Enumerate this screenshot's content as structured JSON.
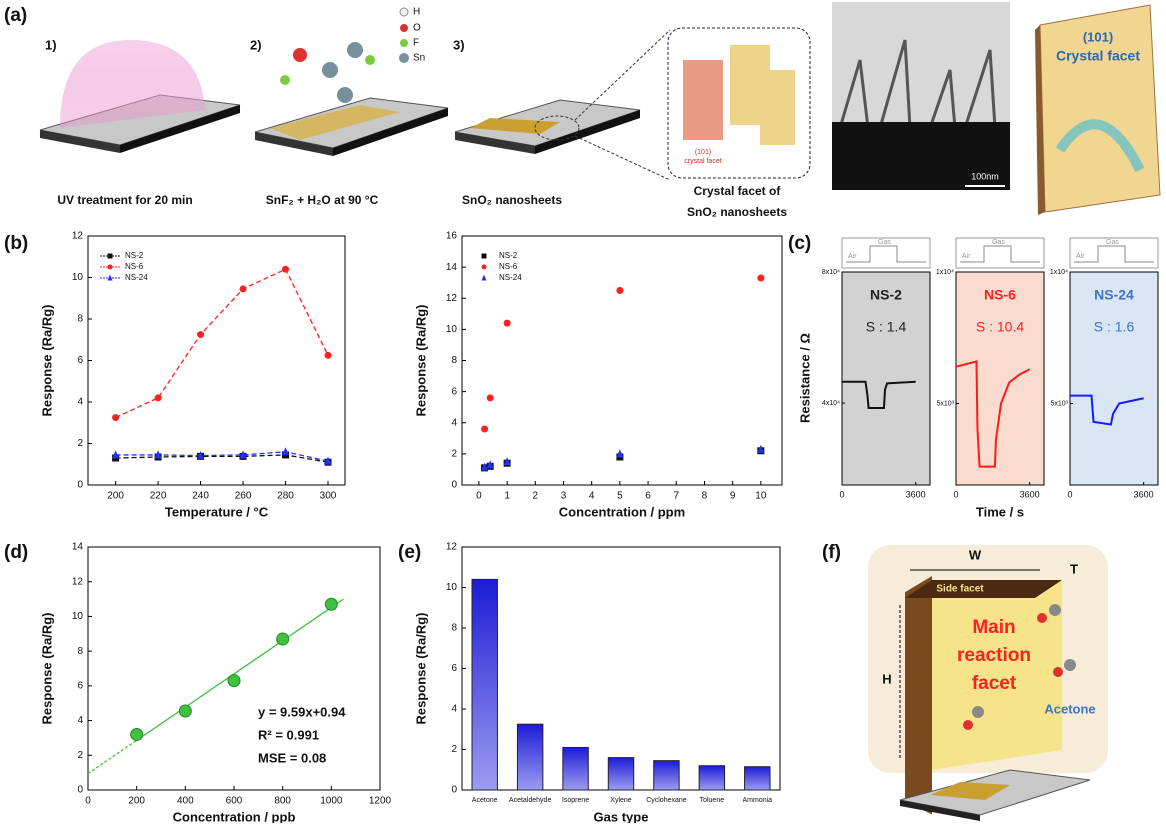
{
  "figure": {
    "panel_labels": [
      "(a)",
      "(b)",
      "(c)",
      "(d)",
      "(e)",
      "(f)"
    ],
    "a": {
      "steps": [
        "1)",
        "2)",
        "3)"
      ],
      "captions": [
        "UV treatment for 20 min",
        "SnF₂ + H₂O at 90 °C",
        "SnO₂ nanosheets"
      ],
      "facet_caption": [
        "Crystal facet of",
        "SnO₂ nanosheets"
      ],
      "facet_label": [
        "(101)",
        "crystal facet"
      ],
      "atoms": [
        "H",
        "O",
        "F",
        "Sn"
      ],
      "scale_bar": "100nm",
      "crystal_facet": [
        "(101)",
        "Crystal facet"
      ]
    },
    "f": {
      "width": "W",
      "thickness": "T",
      "height": "H",
      "side": "Side facet",
      "main": [
        "Main",
        "reaction",
        "facet"
      ],
      "molecule": "Acetone"
    }
  },
  "chart_data": [
    {
      "type": "line",
      "xlabel": "Temperature / °C",
      "ylabel": "Response (Ra/Rg)",
      "legend": "upper left",
      "x": [
        200,
        220,
        240,
        260,
        280,
        300
      ],
      "xlim": [
        187,
        308
      ],
      "xticks": [
        200,
        220,
        240,
        260,
        280,
        300
      ],
      "ylim": [
        0,
        12
      ],
      "yticks": [
        0,
        2,
        4,
        6,
        8,
        10,
        12
      ],
      "series": [
        {
          "name": "NS-2",
          "color": "#111111",
          "marker": "square",
          "values": [
            1.3,
            1.35,
            1.38,
            1.38,
            1.45,
            1.1
          ]
        },
        {
          "name": "NS-6",
          "color": "#ff2020",
          "marker": "circle",
          "values": [
            3.25,
            4.2,
            7.25,
            9.45,
            10.4,
            6.25
          ]
        },
        {
          "name": "NS-24",
          "color": "#2030ff",
          "marker": "triangle",
          "values": [
            1.45,
            1.45,
            1.42,
            1.45,
            1.6,
            1.15
          ]
        }
      ]
    },
    {
      "type": "scatter",
      "xlabel": "Concentration / ppm",
      "ylabel": "Response (Ra/Rg)",
      "legend": "upper left",
      "x": [
        0.2,
        0.4,
        1,
        5,
        10
      ],
      "xlim": [
        -0.6,
        10.75
      ],
      "xticks": [
        0,
        1,
        2,
        3,
        4,
        5,
        6,
        7,
        8,
        9,
        10
      ],
      "ylim": [
        0,
        16
      ],
      "yticks": [
        0,
        2,
        4,
        6,
        8,
        10,
        12,
        14,
        16
      ],
      "series": [
        {
          "name": "NS-2",
          "color": "#111111",
          "marker": "square",
          "values": [
            1.1,
            1.2,
            1.4,
            1.8,
            2.2
          ]
        },
        {
          "name": "NS-6",
          "color": "#ff2020",
          "marker": "circle",
          "values": [
            3.6,
            5.6,
            10.4,
            12.5,
            13.3
          ]
        },
        {
          "name": "NS-24",
          "color": "#2030ff",
          "marker": "triangle",
          "values": [
            1.15,
            1.3,
            1.5,
            2.0,
            2.3
          ]
        }
      ]
    },
    {
      "type": "trace",
      "xlabel": "Time / s",
      "ylabel": "Resistance / Ω",
      "inset_labels": [
        "Air",
        "Gas"
      ],
      "xlim": [
        0,
        4300
      ],
      "xticks": [
        0,
        3600
      ],
      "panels": [
        {
          "name": "NS-2",
          "annotation": "S : 1.4",
          "label_color": "#222222",
          "color": "#111111",
          "background": "#d2d2d2",
          "ylim": [
            15000,
            80000
          ],
          "yticks": [
            {
              "value": 80000,
              "label": "8x10⁴"
            },
            {
              "value": 40000,
              "label": "4x10⁴"
            }
          ],
          "x": [
            0,
            1150,
            1250,
            1300,
            2050,
            2100,
            2200,
            3600
          ],
          "values": [
            46500,
            46500,
            42000,
            38500,
            38500,
            44000,
            46000,
            46500
          ]
        },
        {
          "name": "NS-6",
          "annotation": "S : 10.4",
          "label_color": "#ff2020",
          "color": "#ff1a1a",
          "background": "#f9dccf",
          "ylim": [
            1900,
            10000
          ],
          "yticks": [
            {
              "value": 10000,
              "label": "1x10⁴"
            },
            {
              "value": 5000,
              "label": "5x10³"
            }
          ],
          "x": [
            0,
            1000,
            1050,
            1150,
            1900,
            1950,
            2200,
            2600,
            3100,
            3600
          ],
          "values": [
            6400,
            6600,
            4000,
            2600,
            2600,
            3600,
            5000,
            5800,
            6100,
            6300
          ]
        },
        {
          "name": "NS-24",
          "annotation": "S : 1.6",
          "label_color": "#3f73c8",
          "color": "#1a1aff",
          "background": "#d8e6f6",
          "ylim": [
            1900,
            10000
          ],
          "yticks": [
            {
              "value": 10000,
              "label": "1x10⁴"
            },
            {
              "value": 5000,
              "label": "5x10³"
            }
          ],
          "x": [
            0,
            1050,
            1150,
            2000,
            2100,
            2400,
            3600
          ],
          "values": [
            5300,
            5300,
            4300,
            4200,
            4600,
            5000,
            5200
          ]
        }
      ]
    },
    {
      "type": "fit",
      "xlabel": "Concentration / ppb",
      "ylabel": "Response (Ra/Rg)",
      "color": "#3fc23f",
      "annotations": [
        "y = 9.59x+0.94",
        "R² = 0.991",
        "MSE = 0.08"
      ],
      "x": [
        200,
        400,
        600,
        800,
        1000
      ],
      "values": [
        3.2,
        4.55,
        6.3,
        8.7,
        10.7
      ],
      "xlim": [
        0,
        1200
      ],
      "xticks": [
        0,
        200,
        400,
        600,
        800,
        1000,
        1200
      ],
      "ylim": [
        0,
        14
      ],
      "yticks": [
        0,
        2,
        4,
        6,
        8,
        10,
        12,
        14
      ]
    },
    {
      "type": "bar",
      "xlabel": "Gas type",
      "ylabel": "Response (Ra/Rg)",
      "color": "#1c1cd6",
      "categories": [
        "Acetone",
        "Acetaldehyde",
        "Isoprene",
        "Xylene",
        "Cyclohexane",
        "Toluene",
        "Ammonia"
      ],
      "values": [
        10.4,
        3.25,
        2.1,
        1.6,
        1.45,
        1.2,
        1.15
      ],
      "ylim": [
        0,
        12
      ],
      "yticks": [
        0,
        2,
        4,
        6,
        8,
        10,
        12
      ]
    }
  ]
}
